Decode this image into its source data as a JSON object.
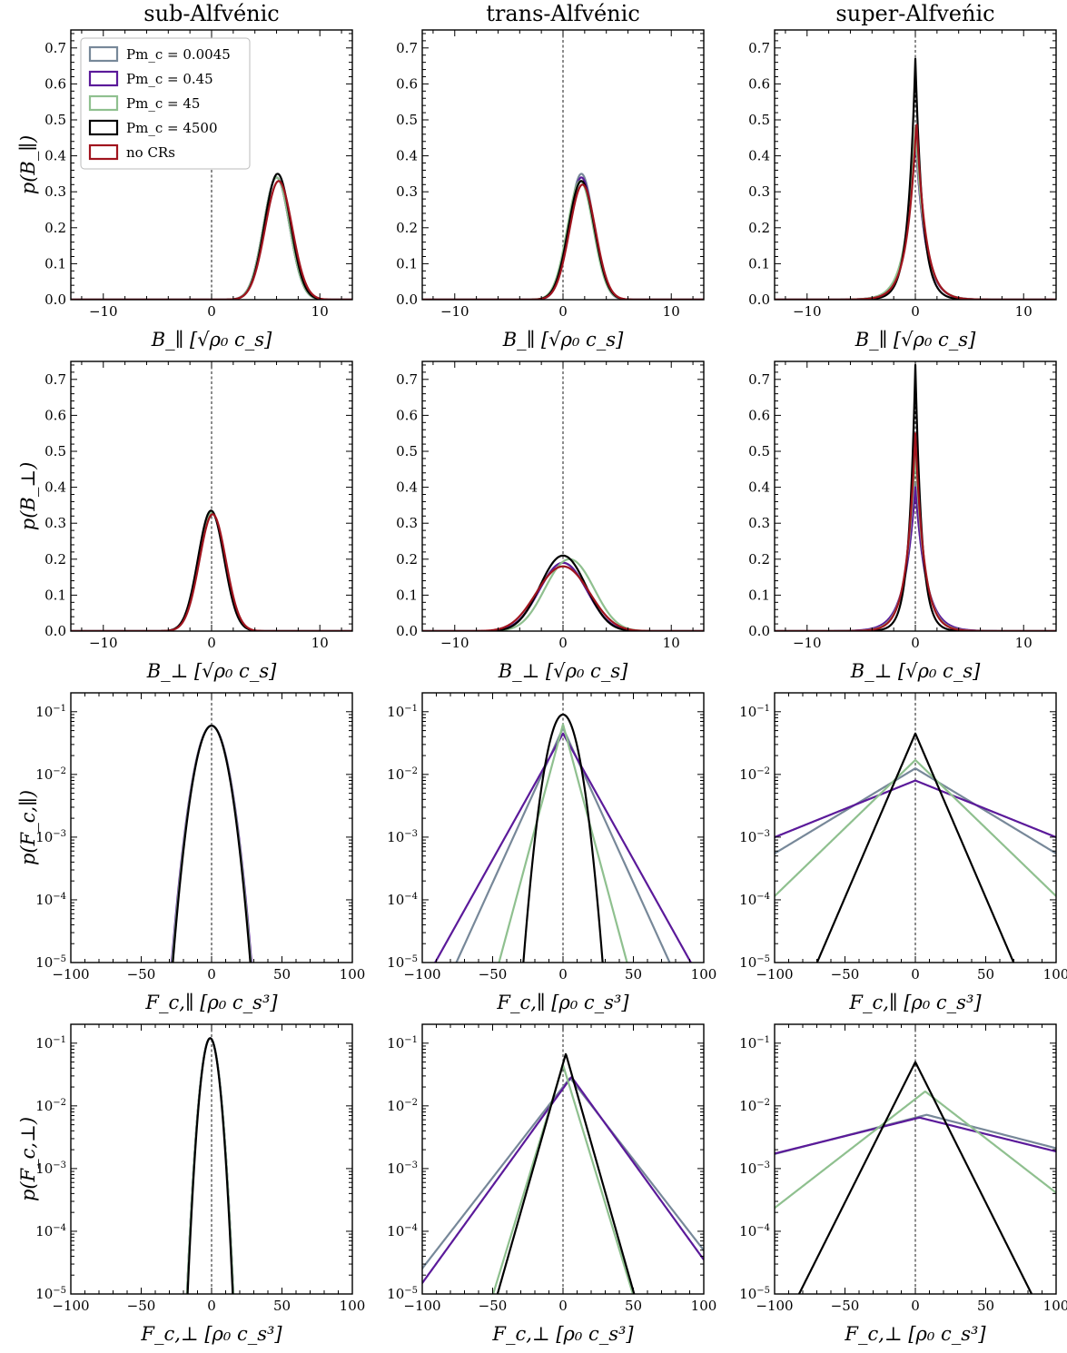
{
  "figure": {
    "column_titles": [
      "sub-Alfvénic",
      "trans-Alfvénic",
      "super-Alfveńic"
    ],
    "legend": {
      "placement": "top-left of first panel",
      "entries": [
        {
          "label": "Pm_c = 0.0045",
          "color": "#778899"
        },
        {
          "label": "Pm_c = 0.45",
          "color": "#5b1a9a"
        },
        {
          "label": "Pm_c = 45",
          "color": "#8fc08f"
        },
        {
          "label": "Pm_c = 4500",
          "color": "#000000"
        },
        {
          "label": "no CRs",
          "color": "#a0141e"
        }
      ]
    },
    "row_labels": {
      "xlabels": [
        "B_∥ [√ρ₀ c_s]",
        "B_⊥ [√ρ₀ c_s]",
        "F_c,∥ [ρ₀ c_s³]",
        "F_c,⊥ [ρ₀ c_s³]"
      ],
      "ylabels": [
        "p(B_∥)",
        "p(B_⊥)",
        "p(F_c,∥)",
        "p(F_c,⊥)"
      ]
    }
  },
  "chart_data": [
    {
      "id": "B_par_sub",
      "type": "line",
      "title": "sub-Alfvénic",
      "xlabel": "B_∥ [√ρ₀ c_s]",
      "ylabel": "p(B_∥)",
      "xlim": [
        -13,
        13
      ],
      "ylim": [
        0,
        0.75
      ],
      "yscale": "linear",
      "xticks": [
        -10,
        0,
        10
      ],
      "yticks": [
        0,
        0.1,
        0.2,
        0.3,
        0.4,
        0.5,
        0.6,
        0.7
      ],
      "series": [
        {
          "name": "Pm_c = 0.0045",
          "color": "#778899",
          "shape": "gauss",
          "mu": 6.0,
          "sigma": 1.2,
          "peak": 0.34
        },
        {
          "name": "Pm_c = 0.45",
          "color": "#5b1a9a",
          "shape": "gauss",
          "mu": 6.0,
          "sigma": 1.2,
          "peak": 0.34
        },
        {
          "name": "Pm_c = 45",
          "color": "#8fc08f",
          "shape": "gauss",
          "mu": 6.0,
          "sigma": 1.2,
          "peak": 0.34
        },
        {
          "name": "Pm_c = 4500",
          "color": "#000000",
          "shape": "gauss",
          "mu": 6.1,
          "sigma": 1.2,
          "peak": 0.35
        },
        {
          "name": "no CRs",
          "color": "#a0141e",
          "shape": "gauss",
          "mu": 6.2,
          "sigma": 1.25,
          "peak": 0.33
        }
      ]
    },
    {
      "id": "B_par_trans",
      "type": "line",
      "title": "trans-Alfvénic",
      "xlabel": "B_∥ [√ρ₀ c_s]",
      "ylabel": "p(B_∥)",
      "xlim": [
        -13,
        13
      ],
      "ylim": [
        0,
        0.75
      ],
      "yscale": "linear",
      "xticks": [
        -10,
        0,
        10
      ],
      "yticks": [
        0,
        0.1,
        0.2,
        0.3,
        0.4,
        0.5,
        0.6,
        0.7
      ],
      "series": [
        {
          "name": "Pm_c = 0.0045",
          "color": "#778899",
          "shape": "gauss",
          "mu": 1.7,
          "sigma": 1.15,
          "peak": 0.35
        },
        {
          "name": "Pm_c = 0.45",
          "color": "#5b1a9a",
          "shape": "gauss",
          "mu": 1.7,
          "sigma": 1.15,
          "peak": 0.34
        },
        {
          "name": "Pm_c = 45",
          "color": "#8fc08f",
          "shape": "gauss",
          "mu": 1.6,
          "sigma": 1.2,
          "peak": 0.33
        },
        {
          "name": "Pm_c = 4500",
          "color": "#000000",
          "shape": "gauss",
          "mu": 1.7,
          "sigma": 1.2,
          "peak": 0.33
        },
        {
          "name": "no CRs",
          "color": "#a0141e",
          "shape": "gauss",
          "mu": 1.8,
          "sigma": 1.2,
          "peak": 0.32
        }
      ]
    },
    {
      "id": "B_par_super",
      "type": "line",
      "title": "super-Alfveńic",
      "xlabel": "B_∥ [√ρ₀ c_s]",
      "ylabel": "p(B_∥)",
      "xlim": [
        -13,
        13
      ],
      "ylim": [
        0,
        0.75
      ],
      "yscale": "linear",
      "xticks": [
        -10,
        0,
        10
      ],
      "yticks": [
        0,
        0.1,
        0.2,
        0.3,
        0.4,
        0.5,
        0.6,
        0.7
      ],
      "series": [
        {
          "name": "Pm_c = 0.0045",
          "color": "#778899",
          "shape": "lap",
          "mu": 0.0,
          "b": 0.9,
          "peak": 0.46
        },
        {
          "name": "Pm_c = 0.45",
          "color": "#5b1a9a",
          "shape": "lap",
          "mu": 0.0,
          "b": 0.9,
          "peak": 0.46
        },
        {
          "name": "Pm_c = 45",
          "color": "#8fc08f",
          "shape": "lap",
          "mu": 0.0,
          "b": 0.9,
          "peak": 0.48
        },
        {
          "name": "Pm_c = 4500",
          "color": "#000000",
          "shape": "lap",
          "mu": 0.0,
          "b": 0.68,
          "peak": 0.67
        },
        {
          "name": "no CRs",
          "color": "#a0141e",
          "shape": "lap",
          "mu": 0.1,
          "b": 0.85,
          "peak": 0.5
        }
      ]
    },
    {
      "id": "B_perp_sub",
      "type": "line",
      "title": "",
      "xlabel": "B_⊥ [√ρ₀ c_s]",
      "ylabel": "p(B_⊥)",
      "xlim": [
        -13,
        13
      ],
      "ylim": [
        0,
        0.75
      ],
      "yscale": "linear",
      "xticks": [
        -10,
        0,
        10
      ],
      "yticks": [
        0,
        0.1,
        0.2,
        0.3,
        0.4,
        0.5,
        0.6,
        0.7
      ],
      "series": [
        {
          "name": "Pm_c = 0.0045",
          "color": "#778899",
          "shape": "gauss",
          "mu": 0.0,
          "sigma": 1.2,
          "peak": 0.33
        },
        {
          "name": "Pm_c = 0.45",
          "color": "#5b1a9a",
          "shape": "gauss",
          "mu": 0.0,
          "sigma": 1.2,
          "peak": 0.33
        },
        {
          "name": "Pm_c = 45",
          "color": "#8fc08f",
          "shape": "gauss",
          "mu": 0.0,
          "sigma": 1.2,
          "peak": 0.33
        },
        {
          "name": "Pm_c = 4500",
          "color": "#000000",
          "shape": "gauss",
          "mu": -0.05,
          "sigma": 1.2,
          "peak": 0.335
        },
        {
          "name": "no CRs",
          "color": "#a0141e",
          "shape": "gauss",
          "mu": 0.1,
          "sigma": 1.22,
          "peak": 0.325
        }
      ]
    },
    {
      "id": "B_perp_trans",
      "type": "line",
      "title": "",
      "xlabel": "B_⊥ [√ρ₀ c_s]",
      "ylabel": "p(B_⊥)",
      "xlim": [
        -13,
        13
      ],
      "ylim": [
        0,
        0.75
      ],
      "yscale": "linear",
      "xticks": [
        -10,
        0,
        10
      ],
      "yticks": [
        0,
        0.1,
        0.2,
        0.3,
        0.4,
        0.5,
        0.6,
        0.7
      ],
      "series": [
        {
          "name": "Pm_c = 0.0045",
          "color": "#778899",
          "shape": "bimodal",
          "mu": 0.0,
          "sigma": 1.85,
          "peak": 0.19,
          "delta": 1.0
        },
        {
          "name": "Pm_c = 0.45",
          "color": "#5b1a9a",
          "shape": "bimodal",
          "mu": 0.0,
          "sigma": 1.85,
          "peak": 0.19,
          "delta": 1.0
        },
        {
          "name": "Pm_c = 45",
          "color": "#8fc08f",
          "shape": "bimodal",
          "mu": 0.6,
          "sigma": 1.8,
          "peak": 0.2,
          "delta": 1.1
        },
        {
          "name": "Pm_c = 4500",
          "color": "#000000",
          "shape": "bimodal",
          "mu": 0.0,
          "sigma": 1.75,
          "peak": 0.21,
          "delta": 1.0
        },
        {
          "name": "no CRs",
          "color": "#a0141e",
          "shape": "bimodal",
          "mu": 0.0,
          "sigma": 1.95,
          "peak": 0.18,
          "delta": 1.2
        }
      ]
    },
    {
      "id": "B_perp_super",
      "type": "line",
      "title": "",
      "xlabel": "B_⊥ [√ρ₀ c_s]",
      "ylabel": "p(B_⊥)",
      "xlim": [
        -13,
        13
      ],
      "ylim": [
        0,
        0.75
      ],
      "yscale": "linear",
      "xticks": [
        -10,
        0,
        10
      ],
      "yticks": [
        0,
        0.1,
        0.2,
        0.3,
        0.4,
        0.5,
        0.6,
        0.7
      ],
      "series": [
        {
          "name": "Pm_c = 0.0045",
          "color": "#778899",
          "shape": "lap",
          "mu": 0.0,
          "b": 0.95,
          "peak": 0.41
        },
        {
          "name": "Pm_c = 0.45",
          "color": "#5b1a9a",
          "shape": "lap",
          "mu": 0.0,
          "b": 1.0,
          "peak": 0.4
        },
        {
          "name": "Pm_c = 45",
          "color": "#8fc08f",
          "shape": "lap",
          "mu": 0.0,
          "b": 0.85,
          "peak": 0.5
        },
        {
          "name": "Pm_c = 4500",
          "color": "#000000",
          "shape": "lap",
          "mu": 0.0,
          "b": 0.6,
          "peak": 0.74
        },
        {
          "name": "no CRs",
          "color": "#a0141e",
          "shape": "lap",
          "mu": 0.0,
          "b": 0.8,
          "peak": 0.55
        }
      ]
    },
    {
      "id": "Fc_par_sub",
      "type": "line",
      "title": "",
      "xlabel": "F_c,∥ [ρ₀ c_s³]",
      "ylabel": "p(F_c,∥)",
      "xlim": [
        -100,
        100
      ],
      "ylim": [
        1e-05,
        0.2
      ],
      "yscale": "log",
      "xticks": [
        -100,
        -50,
        0,
        50,
        100
      ],
      "yticks": [
        1e-05,
        0.0001,
        0.001,
        0.01,
        0.1
      ],
      "series": [
        {
          "name": "Pm_c = 0.0045",
          "color": "#778899",
          "shape": "gauss",
          "mu": 0.0,
          "sigma": 6.7,
          "peak": 0.06
        },
        {
          "name": "Pm_c = 0.45",
          "color": "#5b1a9a",
          "shape": "gauss",
          "mu": 0.0,
          "sigma": 6.8,
          "peak": 0.06
        },
        {
          "name": "Pm_c = 45",
          "color": "#8fc08f",
          "shape": "gauss",
          "mu": 0.0,
          "sigma": 6.7,
          "peak": 0.06
        },
        {
          "name": "Pm_c = 4500",
          "color": "#000000",
          "shape": "gauss",
          "mu": 0.0,
          "sigma": 6.6,
          "peak": 0.06
        }
      ]
    },
    {
      "id": "Fc_par_trans",
      "type": "line",
      "title": "",
      "xlabel": "F_c,∥ [ρ₀ c_s³]",
      "ylabel": "p(F_c,∥)",
      "xlim": [
        -100,
        100
      ],
      "ylim": [
        1e-05,
        0.2
      ],
      "yscale": "log",
      "xticks": [
        -100,
        -50,
        0,
        50,
        100
      ],
      "yticks": [
        1e-05,
        0.0001,
        0.001,
        0.01,
        0.1
      ],
      "series": [
        {
          "name": "Pm_c = 0.0045",
          "color": "#778899",
          "shape": "lap",
          "mu": 0.0,
          "b": 8.8,
          "peak": 0.055
        },
        {
          "name": "Pm_c = 0.45",
          "color": "#5b1a9a",
          "shape": "lap",
          "mu": 0.0,
          "b": 10.8,
          "peak": 0.045
        },
        {
          "name": "Pm_c = 45",
          "color": "#8fc08f",
          "shape": "lap",
          "mu": 0.0,
          "b": 5.2,
          "peak": 0.063
        },
        {
          "name": "Pm_c = 4500",
          "color": "#000000",
          "shape": "gauss",
          "mu": 0.0,
          "sigma": 6.6,
          "peak": 0.09
        }
      ]
    },
    {
      "id": "Fc_par_super",
      "type": "line",
      "title": "",
      "xlabel": "F_c,∥ [ρ₀ c_s³]",
      "ylabel": "p(F_c,∥)",
      "xlim": [
        -100,
        100
      ],
      "ylim": [
        1e-05,
        0.2
      ],
      "yscale": "log",
      "xticks": [
        -100,
        -50,
        0,
        50,
        100
      ],
      "yticks": [
        1e-05,
        0.0001,
        0.001,
        0.01,
        0.1
      ],
      "series": [
        {
          "name": "Pm_c = 0.0045",
          "color": "#778899",
          "shape": "lap",
          "mu": 0.0,
          "b": 32.0,
          "peak": 0.0125
        },
        {
          "name": "Pm_c = 0.45",
          "color": "#5b1a9a",
          "shape": "lap",
          "mu": 0.0,
          "b": 48.0,
          "peak": 0.008
        },
        {
          "name": "Pm_c = 45",
          "color": "#8fc08f",
          "shape": "lap",
          "mu": 0.0,
          "b": 20.0,
          "peak": 0.017
        },
        {
          "name": "Pm_c = 4500",
          "color": "#000000",
          "shape": "lap",
          "mu": 0.0,
          "b": 8.3,
          "peak": 0.045
        }
      ]
    },
    {
      "id": "Fc_perp_sub",
      "type": "line",
      "title": "",
      "xlabel": "F_c,⊥ [ρ₀ c_s³]",
      "ylabel": "p(F_c,⊥)",
      "xlim": [
        -100,
        100
      ],
      "ylim": [
        1e-05,
        0.2
      ],
      "yscale": "log",
      "xticks": [
        -100,
        -50,
        0,
        50,
        100
      ],
      "yticks": [
        1e-05,
        0.0001,
        0.001,
        0.01,
        0.1
      ],
      "series": [
        {
          "name": "Pm_c = 0.0045",
          "color": "#778899",
          "shape": "gauss",
          "mu": -1.0,
          "sigma": 3.8,
          "peak": 0.12
        },
        {
          "name": "Pm_c = 0.45",
          "color": "#5b1a9a",
          "shape": "gauss",
          "mu": -1.0,
          "sigma": 3.8,
          "peak": 0.12
        },
        {
          "name": "Pm_c = 45",
          "color": "#8fc08f",
          "shape": "gauss",
          "mu": -1.0,
          "sigma": 3.8,
          "peak": 0.12
        },
        {
          "name": "Pm_c = 4500",
          "color": "#000000",
          "shape": "gauss",
          "mu": -1.0,
          "sigma": 3.7,
          "peak": 0.12
        }
      ]
    },
    {
      "id": "Fc_perp_trans",
      "type": "line",
      "title": "",
      "xlabel": "F_c,⊥ [ρ₀ c_s³]",
      "ylabel": "p(F_c,⊥)",
      "xlim": [
        -100,
        100
      ],
      "ylim": [
        1e-05,
        0.2
      ],
      "yscale": "log",
      "xticks": [
        -100,
        -50,
        0,
        50,
        100
      ],
      "yticks": [
        1e-05,
        0.0001,
        0.001,
        0.01,
        0.1
      ],
      "series": [
        {
          "name": "Pm_c = 0.0045",
          "color": "#778899",
          "shape": "lap",
          "mu": 5.0,
          "b": 15.0,
          "peak": 0.028
        },
        {
          "name": "Pm_c = 0.45",
          "color": "#5b1a9a",
          "shape": "lap",
          "mu": 6.0,
          "b": 14.0,
          "peak": 0.029
        },
        {
          "name": "Pm_c = 45",
          "color": "#8fc08f",
          "shape": "lap",
          "mu": 0.0,
          "b": 5.9,
          "peak": 0.045
        },
        {
          "name": "Pm_c = 4500",
          "color": "#000000",
          "shape": "lap",
          "mu": 2.0,
          "b": 5.5,
          "peak": 0.068
        }
      ]
    },
    {
      "id": "Fc_perp_super",
      "type": "line",
      "title": "",
      "xlabel": "F_c,⊥ [ρ₀ c_s³]",
      "ylabel": "p(F_c,⊥)",
      "xlim": [
        -100,
        100
      ],
      "ylim": [
        1e-05,
        0.2
      ],
      "yscale": "log",
      "xticks": [
        -100,
        -50,
        0,
        50,
        100
      ],
      "yticks": [
        1e-05,
        0.0001,
        0.001,
        0.01,
        0.1
      ],
      "series": [
        {
          "name": "Pm_c = 0.0045",
          "color": "#778899",
          "shape": "lap",
          "mu": 8.0,
          "b": 75.0,
          "peak": 0.0072
        },
        {
          "name": "Pm_c = 0.45",
          "color": "#5b1a9a",
          "shape": "lap",
          "mu": 3.0,
          "b": 78.0,
          "peak": 0.0065
        },
        {
          "name": "Pm_c = 45",
          "color": "#8fc08f",
          "shape": "lap",
          "mu": 7.0,
          "b": 25.0,
          "peak": 0.017
        },
        {
          "name": "Pm_c = 4500",
          "color": "#000000",
          "shape": "lap",
          "mu": 0.0,
          "b": 9.7,
          "peak": 0.05
        }
      ]
    }
  ]
}
